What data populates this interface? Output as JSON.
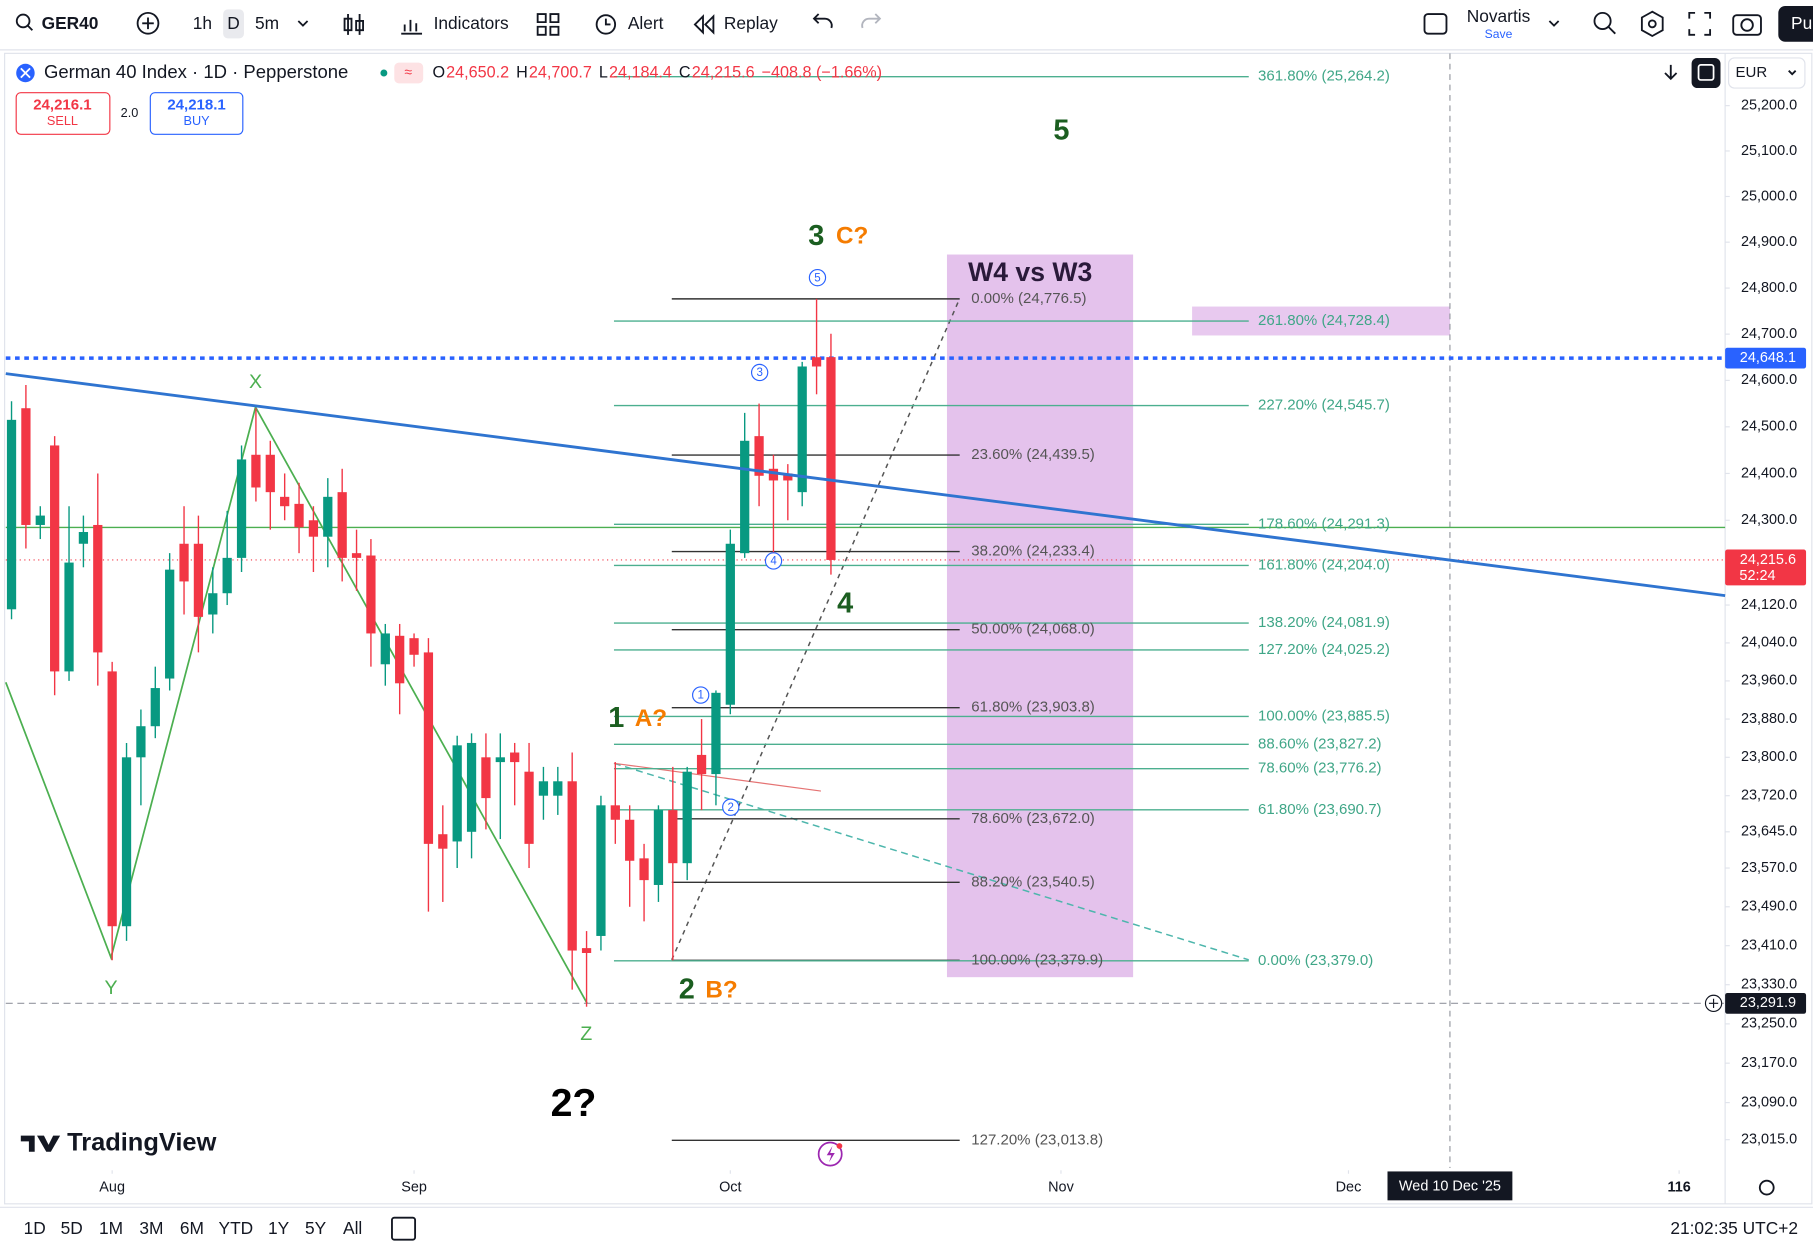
{
  "toolbar": {
    "symbol": "GER40",
    "intervals": [
      "1h",
      "D",
      "5m"
    ],
    "indicators": "Indicators",
    "alert": "Alert",
    "replay": "Replay",
    "layout_name": "Novartis",
    "save": "Save",
    "publish": "Pu"
  },
  "chart_data": {
    "type": "candlestick",
    "title": "German 40 Index · 1D · Pepperstone",
    "ohlc_legend": [
      {
        "key": "O",
        "text": "24,650.2"
      },
      {
        "key": "H",
        "text": "24,700.7"
      },
      {
        "key": "L",
        "text": "24,184.4"
      },
      {
        "key": "C",
        "text": "24,215.6"
      }
    ],
    "change": "−408.8 (−1.66%)",
    "sell": {
      "price": "24,216.1",
      "label": "SELL"
    },
    "spread": "2.0",
    "buy": {
      "price": "24,218.1",
      "label": "BUY"
    },
    "currency": "EUR",
    "up_color": "#089981",
    "down_color": "#f23645",
    "open": [
      24111,
      24540,
      24290,
      24460,
      23980,
      24250,
      24290,
      23980,
      23450,
      23800,
      23865,
      23965,
      24250,
      24250,
      24100,
      24145,
      24220,
      24440,
      24440,
      24350,
      24335,
      24300,
      24265,
      24360,
      24230,
      24225,
      23995,
      24055,
      24050,
      24020,
      23640,
      23625,
      23645,
      23800,
      23790,
      23810,
      23770,
      23720,
      23720,
      23750,
      23405,
      23430,
      23700,
      23670,
      23590,
      23535,
      23690,
      23580,
      23805,
      23765,
      23910,
      24230,
      24480,
      24410,
      24400,
      24360,
      24650,
      24650.2
    ],
    "high": [
      24555,
      24590,
      24330,
      24480,
      24330,
      24310,
      24400,
      24000,
      23830,
      23900,
      23990,
      24230,
      24330,
      24310,
      24200,
      24320,
      24460,
      24540,
      24470,
      24400,
      24380,
      24330,
      24390,
      24410,
      24280,
      24260,
      24080,
      24080,
      24060,
      24050,
      23700,
      23845,
      23850,
      23850,
      23850,
      23830,
      23830,
      23780,
      23780,
      23810,
      23440,
      23720,
      23790,
      23700,
      23620,
      23700,
      23780,
      23780,
      23880,
      23940,
      24280,
      24530,
      24550,
      24440,
      24420,
      24640,
      24776.5,
      24700.7
    ],
    "low": [
      24090,
      24240,
      24260,
      23930,
      23960,
      24200,
      23950,
      23380,
      23420,
      23700,
      23840,
      23940,
      24100,
      24020,
      24060,
      24120,
      24190,
      24340,
      24280,
      24300,
      24230,
      24190,
      24200,
      24170,
      24150,
      23990,
      23950,
      23890,
      23990,
      23480,
      23500,
      23570,
      23590,
      23650,
      23630,
      23700,
      23570,
      23670,
      23680,
      23320,
      23285,
      23400,
      23620,
      23490,
      23460,
      23500,
      23379.9,
      23545,
      23690,
      23700,
      23890,
      24220,
      24330,
      24230,
      24300,
      24330,
      24570,
      24184.4
    ],
    "close": [
      24515,
      24290,
      24310,
      23980,
      24210,
      24275,
      24020,
      23450,
      23800,
      23865,
      23945,
      24195,
      24170,
      24095,
      24145,
      24220,
      24430,
      24370,
      24360,
      24330,
      24285,
      24265,
      24350,
      24220,
      24220,
      24060,
      24060,
      23955,
      24015,
      23620,
      23610,
      23825,
      23830,
      23715,
      23800,
      23790,
      23620,
      23750,
      23750,
      23400,
      23395,
      23700,
      23670,
      23585,
      23545,
      23690,
      23580,
      23770,
      23765,
      23935,
      24250,
      24470,
      24395,
      24385,
      24385,
      24630,
      24630,
      24215.6
    ],
    "xlim": [
      -0.4,
      119.2
    ],
    "xticks": [
      {
        "value": 7,
        "label": "Aug"
      },
      {
        "value": 28,
        "label": "Sep"
      },
      {
        "value": 50,
        "label": "Oct"
      },
      {
        "value": 73,
        "label": "Nov"
      },
      {
        "value": 93,
        "label": "Dec"
      },
      116
    ],
    "ylim": [
      22958,
      25321
    ],
    "log_scale": true,
    "grid": false,
    "yticks": [
      {
        "value": 25200,
        "label": "25,200.0"
      },
      {
        "value": 25100,
        "label": "25,100.0"
      },
      {
        "value": 25000,
        "label": "25,000.0"
      },
      {
        "value": 24900,
        "label": "24,900.0"
      },
      {
        "value": 24800,
        "label": "24,800.0"
      },
      {
        "value": 24700,
        "label": "24,700.0"
      },
      {
        "value": 24600,
        "label": "24,600.0"
      },
      {
        "value": 24500,
        "label": "24,500.0"
      },
      {
        "value": 24400,
        "label": "24,400.0"
      },
      {
        "value": 24300,
        "label": "24,300.0"
      },
      {
        "value": 24120,
        "label": "24,120.0"
      },
      {
        "value": 24040,
        "label": "24,040.0"
      },
      {
        "value": 23960,
        "label": "23,960.0"
      },
      {
        "value": 23880,
        "label": "23,880.0"
      },
      {
        "value": 23800,
        "label": "23,800.0"
      },
      {
        "value": 23720,
        "label": "23,720.0"
      },
      {
        "value": 23645,
        "label": "23,645.0"
      },
      {
        "value": 23570,
        "label": "23,570.0"
      },
      {
        "value": 23490,
        "label": "23,490.0"
      },
      {
        "value": 23410,
        "label": "23,410.0"
      },
      {
        "value": 23330,
        "label": "23,330.0"
      },
      {
        "value": 23250,
        "label": "23,250.0"
      },
      {
        "value": 23170,
        "label": "23,170.0"
      },
      {
        "value": 23090,
        "label": "23,090.0"
      },
      {
        "value": 23015,
        "label": "23,015.0"
      }
    ],
    "price_lines": [
      {
        "value": 24648.1,
        "label": "24,648.1",
        "color": "#2962ff"
      },
      {
        "value": 24215.6,
        "label": "24,215.6",
        "sublabel": "52:24",
        "color": "#f23645"
      },
      {
        "value": 23291.9,
        "label": "23,291.9",
        "color": "#131722"
      }
    ],
    "crosshair_date": "Wed 10 Dec '25",
    "fib_retracement": {
      "color": "#333333",
      "text_color": "#555555",
      "levels": [
        {
          "label": "0.00% (24,776.5)",
          "value": 24776.5
        },
        {
          "label": "23.60% (24,439.5)",
          "value": 24439.5
        },
        {
          "label": "38.20% (24,233.4)",
          "value": 24233.4
        },
        {
          "label": "50.00% (24,068.0)",
          "value": 24068.0
        },
        {
          "label": "61.80% (23,903.8)",
          "value": 23903.8
        },
        {
          "label": "78.60% (23,672.0)",
          "value": 23672.0
        },
        {
          "label": "88.20% (23,540.5)",
          "value": 23540.5
        },
        {
          "label": "100.00% (23,379.9)",
          "value": 23379.9
        },
        {
          "label": "127.20% (23,013.8)",
          "value": 23013.8
        }
      ]
    },
    "fib_extension": {
      "color": "#4caf8f",
      "text_color": "#3fa687",
      "levels": [
        {
          "label": "361.80% (25,264.2)",
          "value": 25264.2
        },
        {
          "label": "261.80% (24,728.4)",
          "value": 24728.4
        },
        {
          "label": "227.20% (24,545.7)",
          "value": 24545.7
        },
        {
          "label": "178.60% (24,291.3)",
          "value": 24291.3
        },
        {
          "label": "161.80% (24,204.0)",
          "value": 24204.0
        },
        {
          "label": "138.20% (24,081.9)",
          "value": 24081.9
        },
        {
          "label": "127.20% (24,025.2)",
          "value": 24025.2
        },
        {
          "label": "100.00% (23,885.5)",
          "value": 23885.5
        },
        {
          "label": "88.60% (23,827.2)",
          "value": 23827.2
        },
        {
          "label": "78.60% (23,776.2)",
          "value": 23776.2
        },
        {
          "label": "61.80% (23,690.7)",
          "value": 23690.7
        },
        {
          "label": "0.00% (23,379.0)",
          "value": 23379.0
        }
      ]
    },
    "box_label": "W4 vs W3",
    "annotations": [
      {
        "text": "X",
        "color": "#4caf50"
      },
      {
        "text": "Y",
        "color": "#4caf50"
      },
      {
        "text": "Z",
        "color": "#4caf50"
      },
      {
        "text": "1",
        "color": "#1b5e20"
      },
      {
        "text": "A?",
        "color": "#f57c00"
      },
      {
        "text": "2",
        "color": "#1b5e20"
      },
      {
        "text": "B?",
        "color": "#f57c00"
      },
      {
        "text": "3",
        "color": "#1b5e20"
      },
      {
        "text": "C?",
        "color": "#f57c00"
      },
      {
        "text": "4",
        "color": "#1b5e20"
      },
      {
        "text": "5",
        "color": "#1b5e20"
      },
      {
        "text": "2?",
        "color": "#000000"
      }
    ],
    "wave_circles": [
      "5",
      "3",
      "4",
      "1",
      "2"
    ]
  },
  "watermark": "TradingView",
  "bottom_bar": {
    "ranges": [
      "1D",
      "5D",
      "1M",
      "3M",
      "6M",
      "YTD",
      "1Y",
      "5Y",
      "All"
    ],
    "clock": "21:02:35 UTC+2"
  }
}
